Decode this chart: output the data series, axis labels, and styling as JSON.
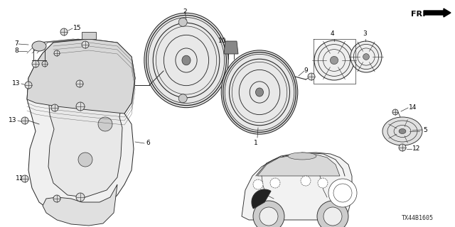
{
  "bg_color": "#ffffff",
  "diagram_code": "TX44B1605",
  "gray": "#2a2a2a",
  "lw": 0.8
}
